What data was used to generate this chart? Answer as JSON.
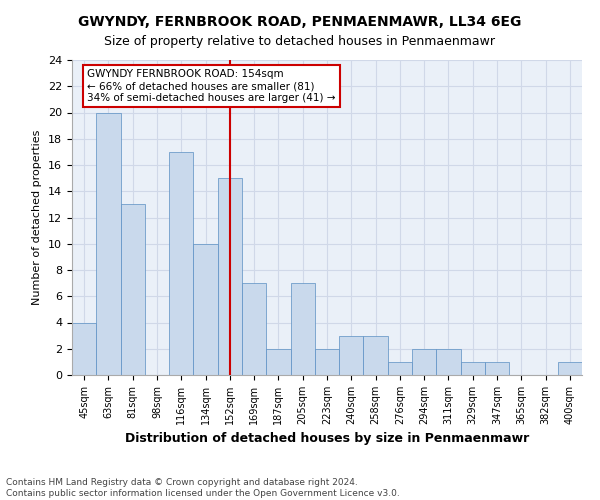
{
  "title": "GWYNDY, FERNBROOK ROAD, PENMAENMAWR, LL34 6EG",
  "subtitle": "Size of property relative to detached houses in Penmaenmawr",
  "xlabel": "Distribution of detached houses by size in Penmaenmawr",
  "ylabel": "Number of detached properties",
  "categories": [
    "45sqm",
    "63sqm",
    "81sqm",
    "98sqm",
    "116sqm",
    "134sqm",
    "152sqm",
    "169sqm",
    "187sqm",
    "205sqm",
    "223sqm",
    "240sqm",
    "258sqm",
    "276sqm",
    "294sqm",
    "311sqm",
    "329sqm",
    "347sqm",
    "365sqm",
    "382sqm",
    "400sqm"
  ],
  "values": [
    4,
    20,
    13,
    0,
    17,
    10,
    15,
    7,
    2,
    7,
    2,
    3,
    3,
    1,
    2,
    2,
    1,
    1,
    0,
    0,
    1
  ],
  "bar_color": "#c9d9ec",
  "bar_edge_color": "#5a8fc3",
  "reference_line_index": 6,
  "reference_line_label": "GWYNDY FERNBROOK ROAD: 154sqm",
  "annotation_line1": "← 66% of detached houses are smaller (81)",
  "annotation_line2": "34% of semi-detached houses are larger (41) →",
  "annotation_box_color": "#ffffff",
  "annotation_box_edge_color": "#cc0000",
  "ref_line_color": "#cc0000",
  "ylim": [
    0,
    24
  ],
  "yticks": [
    0,
    2,
    4,
    6,
    8,
    10,
    12,
    14,
    16,
    18,
    20,
    22,
    24
  ],
  "grid_color": "#d0d8e8",
  "background_color": "#eaf0f8",
  "footer1": "Contains HM Land Registry data © Crown copyright and database right 2024.",
  "footer2": "Contains public sector information licensed under the Open Government Licence v3.0."
}
